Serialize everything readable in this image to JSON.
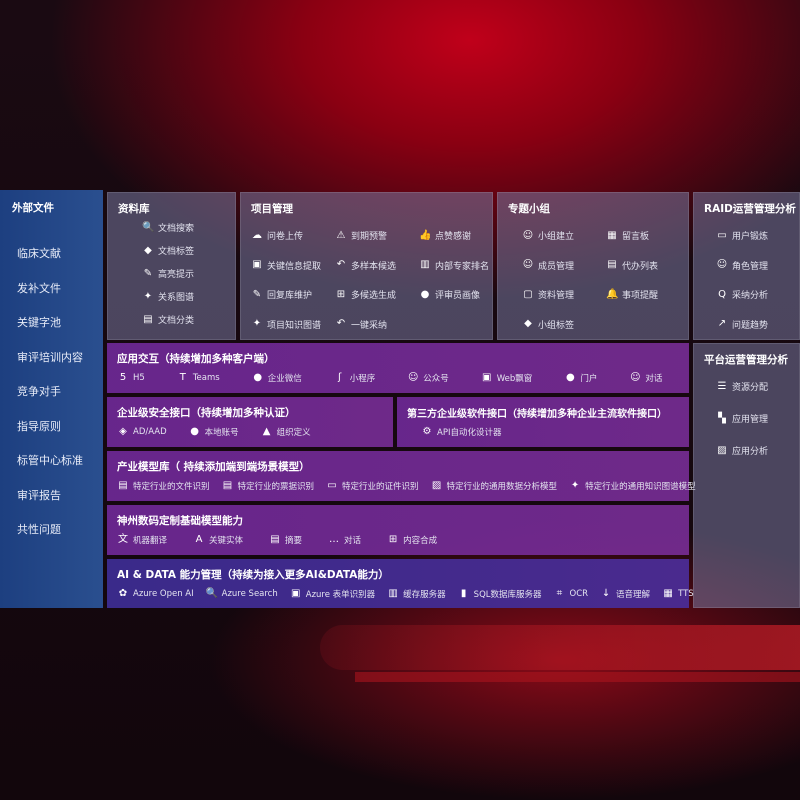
{
  "external": {
    "title": "外部文件",
    "items": [
      "临床文献",
      "发补文件",
      "关键字池",
      "审评培训内容",
      "竞争对手",
      "指导原则",
      "标管中心标准",
      "审评报告",
      "共性问题"
    ]
  },
  "library": {
    "title": "资料库",
    "items": [
      {
        "icon": "document-search-icon",
        "label": "文档搜索"
      },
      {
        "icon": "tag-icon",
        "label": "文档标签"
      },
      {
        "icon": "pen-icon",
        "label": "高亮提示"
      },
      {
        "icon": "graph-icon",
        "label": "关系图谱"
      },
      {
        "icon": "document-icon",
        "label": "文档分类"
      }
    ]
  },
  "project": {
    "title": "项目管理",
    "items": [
      {
        "icon": "cloud-upload-icon",
        "label": "问卷上传"
      },
      {
        "icon": "alarm-icon",
        "label": "到期预警"
      },
      {
        "icon": "thumbs-up-icon",
        "label": "点赞感谢"
      },
      {
        "icon": "window-icon",
        "label": "关键信息提取"
      },
      {
        "icon": "reply-icon",
        "label": "多样本候选"
      },
      {
        "icon": "ranking-icon",
        "label": "内部专家排名"
      },
      {
        "icon": "edit-icon",
        "label": "回复库维护"
      },
      {
        "icon": "puzzle-icon",
        "label": "多候选生成"
      },
      {
        "icon": "user-icon",
        "label": "评审员画像"
      },
      {
        "icon": "graph-icon",
        "label": "项目知识图谱"
      },
      {
        "icon": "reply-icon",
        "label": "一键采纳"
      }
    ]
  },
  "group": {
    "title": "专题小组",
    "items": [
      {
        "icon": "users-icon",
        "label": "小组建立"
      },
      {
        "icon": "bbs-icon",
        "label": "留言板"
      },
      {
        "icon": "user-add-icon",
        "label": "成员管理"
      },
      {
        "icon": "clipboard-icon",
        "label": "代办列表"
      },
      {
        "icon": "folder-icon",
        "label": "资料管理"
      },
      {
        "icon": "bell-icon",
        "label": "事项提醒"
      },
      {
        "icon": "tag-icon",
        "label": "小组标签"
      }
    ]
  },
  "raid": {
    "title": "RAID运营管理分析",
    "items": [
      {
        "icon": "id-card-icon",
        "label": "用户锻炼"
      },
      {
        "icon": "users-icon",
        "label": "角色管理"
      },
      {
        "icon": "qa-icon",
        "label": "采纳分析"
      },
      {
        "icon": "trend-icon",
        "label": "问题趋势"
      }
    ]
  },
  "platform": {
    "title": "平台运营管理分析",
    "items": [
      {
        "icon": "list-icon",
        "label": "资源分配"
      },
      {
        "icon": "apps-icon",
        "label": "应用管理"
      },
      {
        "icon": "chart-icon",
        "label": "应用分析"
      }
    ]
  },
  "interaction": {
    "title": "应用交互（持续增加多种客户端）",
    "items": [
      {
        "icon": "html5-icon",
        "label": "H5"
      },
      {
        "icon": "teams-icon",
        "label": "Teams"
      },
      {
        "icon": "wechat-icon",
        "label": "企业微信"
      },
      {
        "icon": "miniprogram-icon",
        "label": "小程序"
      },
      {
        "icon": "users-icon",
        "label": "公众号"
      },
      {
        "icon": "window-icon",
        "label": "Web飘窗"
      },
      {
        "icon": "portal-icon",
        "label": "门户"
      },
      {
        "icon": "chat-users-icon",
        "label": "对话"
      }
    ]
  },
  "security": {
    "title": "企业级安全接口（持续增加多种认证）",
    "items": [
      {
        "icon": "ad-icon",
        "label": "AD/AAD"
      },
      {
        "icon": "user-lock-icon",
        "label": "本地账号"
      },
      {
        "icon": "org-icon",
        "label": "组织定义"
      }
    ]
  },
  "thirdparty": {
    "title": "第三方企业级软件接口（持续增加多种企业主流软件接口）",
    "items": [
      {
        "icon": "gear-icon",
        "label": "API自动化设计器"
      }
    ]
  },
  "industry": {
    "title": "产业模型库（ 持续添加端到端场景模型）",
    "items": [
      {
        "icon": "file-icon",
        "label": "特定行业的文件识别"
      },
      {
        "icon": "receipt-icon",
        "label": "特定行业的票据识别"
      },
      {
        "icon": "id-card-icon",
        "label": "特定行业的证件识别"
      },
      {
        "icon": "data-chart-icon",
        "label": "特定行业的通用数据分析模型"
      },
      {
        "icon": "graph-icon",
        "label": "特定行业的通用知识图谱模型"
      }
    ]
  },
  "base": {
    "title": "神州数码定制基础模型能力",
    "items": [
      {
        "icon": "translate-icon",
        "label": "机器翻译"
      },
      {
        "icon": "entity-icon",
        "label": "关键实体"
      },
      {
        "icon": "summary-icon",
        "label": "摘要"
      },
      {
        "icon": "chat-icon",
        "label": "对话"
      },
      {
        "icon": "puzzle-icon",
        "label": "内容合成"
      }
    ]
  },
  "ai": {
    "title": "AI & DATA 能力管理（持续为接入更多AI&DATA能力）",
    "items": [
      {
        "icon": "openai-icon",
        "label": "Azure Open AI"
      },
      {
        "icon": "search-doc-icon",
        "label": "Azure Search"
      },
      {
        "icon": "form-icon",
        "label": "Azure 表单识别器"
      },
      {
        "icon": "cache-icon",
        "label": "缓存服务器"
      },
      {
        "icon": "sql-icon",
        "label": "SQL数据库服务器"
      },
      {
        "icon": "ocr-icon",
        "label": "OCR"
      },
      {
        "icon": "speech-icon",
        "label": "语音理解"
      },
      {
        "icon": "tts-icon",
        "label": "TTS"
      }
    ]
  }
}
